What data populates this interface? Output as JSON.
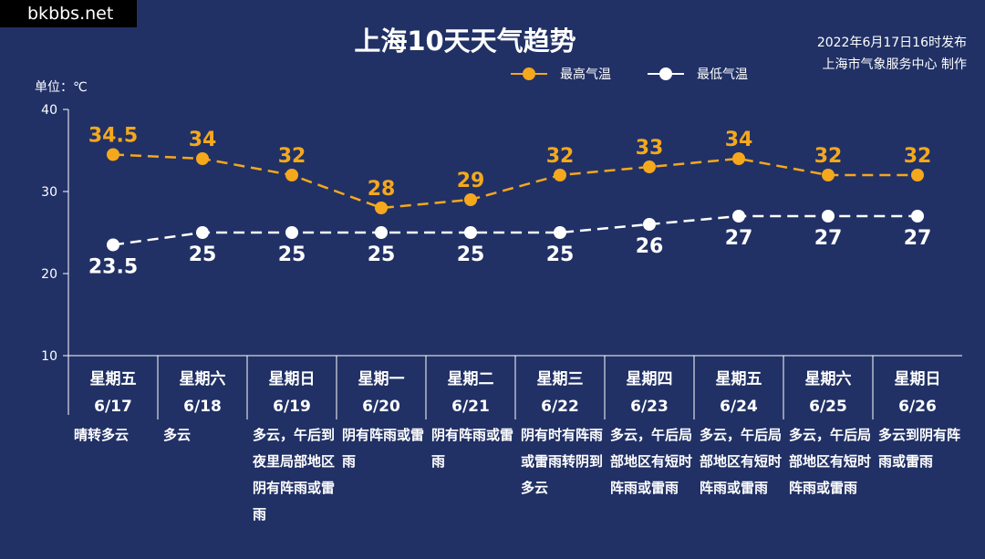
{
  "watermark": "bkbbs.net",
  "header": {
    "title": "上海10天天气趋势",
    "published": "2022年6月17日16时发布",
    "publisher": "上海市气象服务中心 制作",
    "unit": "单位：℃"
  },
  "colors": {
    "background": "#213166",
    "high": "#f5a81c",
    "low": "#ffffff"
  },
  "chart_data": {
    "type": "line",
    "title": "上海10天天气趋势",
    "ylabel": "单位：℃",
    "ylim": [
      10,
      40
    ],
    "yticks": [
      "10",
      "20",
      "30",
      "40"
    ],
    "legend_position": "top-right",
    "categories": [
      "6/17",
      "6/18",
      "6/19",
      "6/20",
      "6/21",
      "6/22",
      "6/23",
      "6/24",
      "6/25",
      "6/26"
    ],
    "weekdays": [
      "星期五",
      "星期六",
      "星期日",
      "星期一",
      "星期二",
      "星期三",
      "星期四",
      "星期五",
      "星期六",
      "星期日"
    ],
    "descriptions": [
      "晴转多云",
      "多云",
      "多云，午后到夜里局部地区阴有阵雨或雷雨",
      "阴有阵雨或雷雨",
      "阴有阵雨或雷雨",
      "阴有时有阵雨或雷雨转阴到多云",
      "多云，午后局部地区有短时阵雨或雷雨",
      "多云，午后局部地区有短时阵雨或雷雨",
      "多云，午后局部地区有短时阵雨或雷雨",
      "多云到阴有阵雨或雷雨"
    ],
    "series": [
      {
        "name": "最高气温",
        "values": [
          34.5,
          34,
          32,
          28,
          29,
          32,
          33,
          34,
          32,
          32
        ],
        "labels": [
          "34.5",
          "34",
          "32",
          "28",
          "29",
          "32",
          "33",
          "34",
          "32",
          "32"
        ]
      },
      {
        "name": "最低气温",
        "values": [
          23.5,
          25,
          25,
          25,
          25,
          25,
          26,
          27,
          27,
          27
        ],
        "labels": [
          "23.5",
          "25",
          "25",
          "25",
          "25",
          "25",
          "26",
          "27",
          "27",
          "27"
        ]
      }
    ]
  }
}
